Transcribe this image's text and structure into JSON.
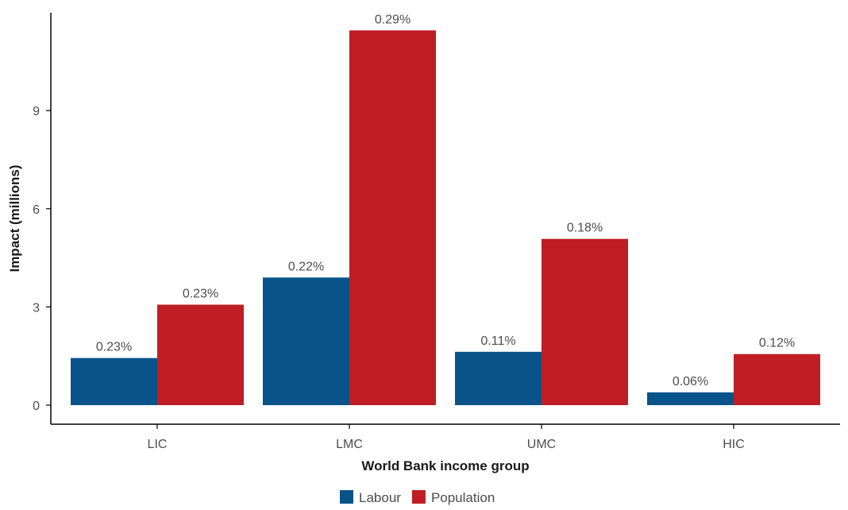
{
  "chart_data": {
    "type": "bar",
    "xlabel": "World Bank income group",
    "ylabel": "Impact (millions)",
    "categories": [
      "LIC",
      "LMC",
      "UMC",
      "HIC"
    ],
    "ylim": [
      0,
      12
    ],
    "yticks": [
      0,
      3,
      6,
      9
    ],
    "grid": false,
    "legend_position": "bottom",
    "series": [
      {
        "name": "Labour",
        "color": "#08548a",
        "values": [
          1.44,
          3.9,
          1.63,
          0.39
        ],
        "labels": [
          "0.23%",
          "0.22%",
          "0.11%",
          "0.06%"
        ]
      },
      {
        "name": "Population",
        "color": "#be1e24",
        "values": [
          3.07,
          11.45,
          5.08,
          1.56
        ],
        "labels": [
          "0.23%",
          "0.29%",
          "0.18%",
          "0.12%"
        ]
      }
    ]
  }
}
